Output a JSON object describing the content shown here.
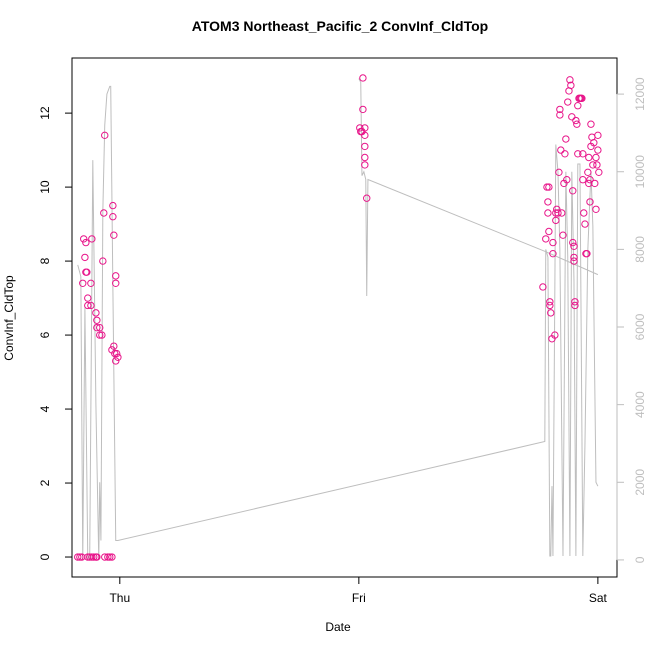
{
  "chart_data": {
    "type": "scatter",
    "title": "ATOM3 Northeast_Pacific_2 ConvInf_CldTop",
    "xlabel": "Date",
    "ylabel": "ConvInf_CldTop",
    "xlim": [
      -0.2,
      2.08
    ],
    "xticks": [
      {
        "value": 0,
        "label": "Thu"
      },
      {
        "value": 1,
        "label": "Fri"
      },
      {
        "value": 2,
        "label": "Sat"
      }
    ],
    "ylim": [
      -0.54,
      13.49
    ],
    "yticks": [
      0,
      2,
      4,
      6,
      8,
      10,
      12
    ],
    "y2lim": [
      -440,
      12930
    ],
    "y2ticks": [
      0,
      2000,
      4000,
      6000,
      8000,
      10000,
      12000
    ],
    "y2color": "#bebebe",
    "series": [
      {
        "type": "scatter",
        "color": "#e8158a",
        "x": [
          -0.155,
          -0.151,
          -0.146,
          -0.142,
          -0.142,
          -0.138,
          -0.134,
          -0.134,
          -0.121,
          -0.117,
          -0.121,
          -0.1,
          -0.096,
          -0.096,
          -0.084,
          -0.084,
          -0.075,
          -0.071,
          -0.067,
          -0.063,
          -0.033,
          -0.029,
          -0.029,
          -0.025,
          -0.025,
          -0.017,
          -0.017,
          -0.017,
          -0.013,
          -0.008,
          -0.021,
          -0.176,
          -0.167,
          -0.159,
          -0.134,
          -0.126,
          -0.117,
          -0.109,
          -0.1,
          -0.096,
          -0.063,
          -0.05,
          -0.042,
          -0.033,
          1.004,
          1.008,
          1.017,
          1.017,
          1.013,
          1.025,
          1.025,
          1.025,
          1.025,
          1.025,
          1.033,
          1.77,
          1.782,
          1.787,
          1.791,
          1.791,
          1.795,
          1.795,
          1.799,
          1.799,
          1.803,
          1.808,
          1.812,
          1.812,
          1.82,
          1.824,
          1.824,
          1.828,
          1.833,
          1.837,
          1.841,
          1.841,
          1.845,
          1.849,
          1.854,
          1.858,
          1.862,
          1.866,
          1.87,
          1.874,
          1.879,
          1.883,
          1.887,
          1.891,
          1.895,
          1.895,
          1.9,
          1.9,
          1.9,
          1.904,
          1.904,
          1.908,
          1.912,
          1.916,
          1.916,
          1.921,
          1.925,
          1.929,
          1.933,
          1.937,
          1.937,
          1.941,
          1.946,
          1.95,
          1.954,
          1.958,
          1.962,
          1.962,
          1.967,
          1.967,
          1.971,
          1.971,
          1.975,
          1.979,
          1.983,
          1.987,
          1.992,
          1.992,
          1.996,
          2.0,
          2.0,
          2.004
        ],
        "values": [
          7.4,
          8.6,
          8.1,
          8.5,
          7.7,
          7.7,
          7.0,
          6.8,
          7.4,
          8.6,
          6.8,
          6.6,
          6.4,
          6.2,
          6.2,
          6.0,
          6.0,
          8.0,
          9.3,
          11.4,
          5.6,
          9.5,
          9.2,
          8.7,
          5.7,
          7.6,
          7.4,
          5.3,
          5.5,
          5.4,
          5.5,
          0,
          0,
          0,
          0,
          0,
          0,
          0,
          0,
          0,
          0,
          0,
          0,
          0,
          11.6,
          11.5,
          12.95,
          12.1,
          11.5,
          11.6,
          11.4,
          11.1,
          10.8,
          10.6,
          9.7,
          7.3,
          8.6,
          10.0,
          9.6,
          9.3,
          10.0,
          8.8,
          6.9,
          6.8,
          6.6,
          5.9,
          8.5,
          8.2,
          6.0,
          9.3,
          9.1,
          9.4,
          9.3,
          10.4,
          12.1,
          11.95,
          11.0,
          9.3,
          8.7,
          10.1,
          10.9,
          11.3,
          10.2,
          12.3,
          12.6,
          12.9,
          12.75,
          11.9,
          9.9,
          8.5,
          8.4,
          8.1,
          8.0,
          6.9,
          6.8,
          11.8,
          11.7,
          10.9,
          12.2,
          12.4,
          12.4,
          12.4,
          12.4,
          10.9,
          10.2,
          9.3,
          9.0,
          8.2,
          8.2,
          10.4,
          10.1,
          10.8,
          10.2,
          9.6,
          11.7,
          11.1,
          11.35,
          10.6,
          11.2,
          10.1,
          9.4,
          10.8,
          10.6,
          11.0,
          11.4,
          10.4
        ]
      },
      {
        "type": "line",
        "axis": "y2",
        "color": "#bebebe",
        "x": [
          -0.176,
          -0.163,
          -0.155,
          -0.146,
          -0.134,
          -0.126,
          -0.113,
          -0.1,
          -0.088,
          -0.084,
          -0.079,
          -0.071,
          -0.063,
          -0.054,
          -0.042,
          -0.038,
          -0.029,
          -0.017,
          -0.008,
          1.778,
          1.782,
          1.791,
          1.799,
          1.803,
          1.808,
          1.812,
          1.82,
          1.824,
          1.833,
          1.841,
          1.854,
          1.866,
          1.874,
          1.883,
          1.891,
          1.9,
          1.908,
          1.916,
          1.925,
          1.937,
          1.946,
          1.958,
          1.971,
          1.979,
          1.992,
          2.0,
          null,
          1.0,
          1.008,
          1.013,
          1.021,
          1.029,
          1.033,
          1.038,
          1.778,
          2.0
        ],
        "values": [
          7600,
          7300,
          0,
          6500,
          0,
          0,
          10300,
          4000,
          0,
          2000,
          500,
          9000,
          11200,
          12000,
          12200,
          12200,
          7000,
          500,
          500,
          3050,
          8000,
          7800,
          100,
          100,
          1900,
          100,
          7000,
          10700,
          10000,
          8000,
          100,
          10000,
          7800,
          100,
          10000,
          7200,
          100,
          10200,
          10200,
          100,
          3000,
          8000,
          10000,
          8600,
          2000,
          1900,
          null,
          12400,
          12300,
          9900,
          10000,
          9800,
          6800,
          9800,
          7950,
          7350
        ]
      }
    ]
  }
}
